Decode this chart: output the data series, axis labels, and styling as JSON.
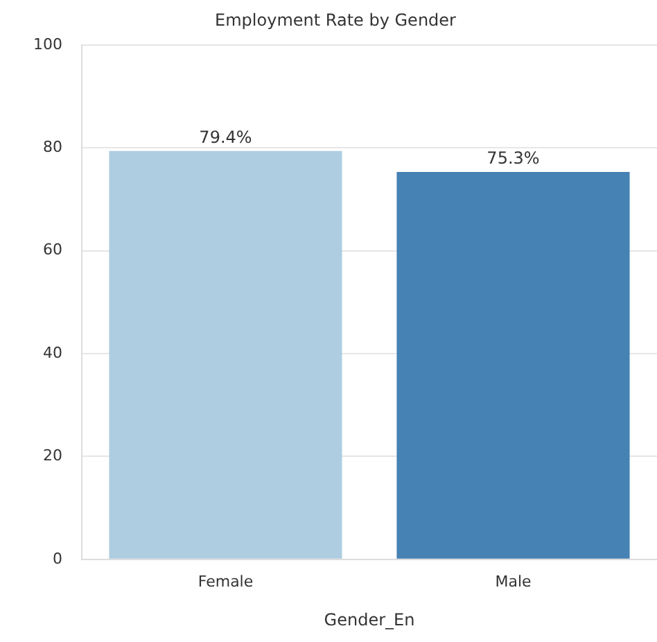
{
  "chart_data": {
    "type": "bar",
    "title": "Employment Rate by Gender",
    "xlabel": "Gender_En",
    "categories": [
      "Female",
      "Male"
    ],
    "values": [
      79.4,
      75.3
    ],
    "colors": [
      "#aecde1",
      "#4682b4"
    ],
    "value_labels": [
      "79.4%",
      "75.3%"
    ],
    "ylim": [
      0,
      100
    ],
    "yticks": [
      0,
      20,
      40,
      60,
      80,
      100
    ],
    "grid": "y",
    "legend": false
  }
}
